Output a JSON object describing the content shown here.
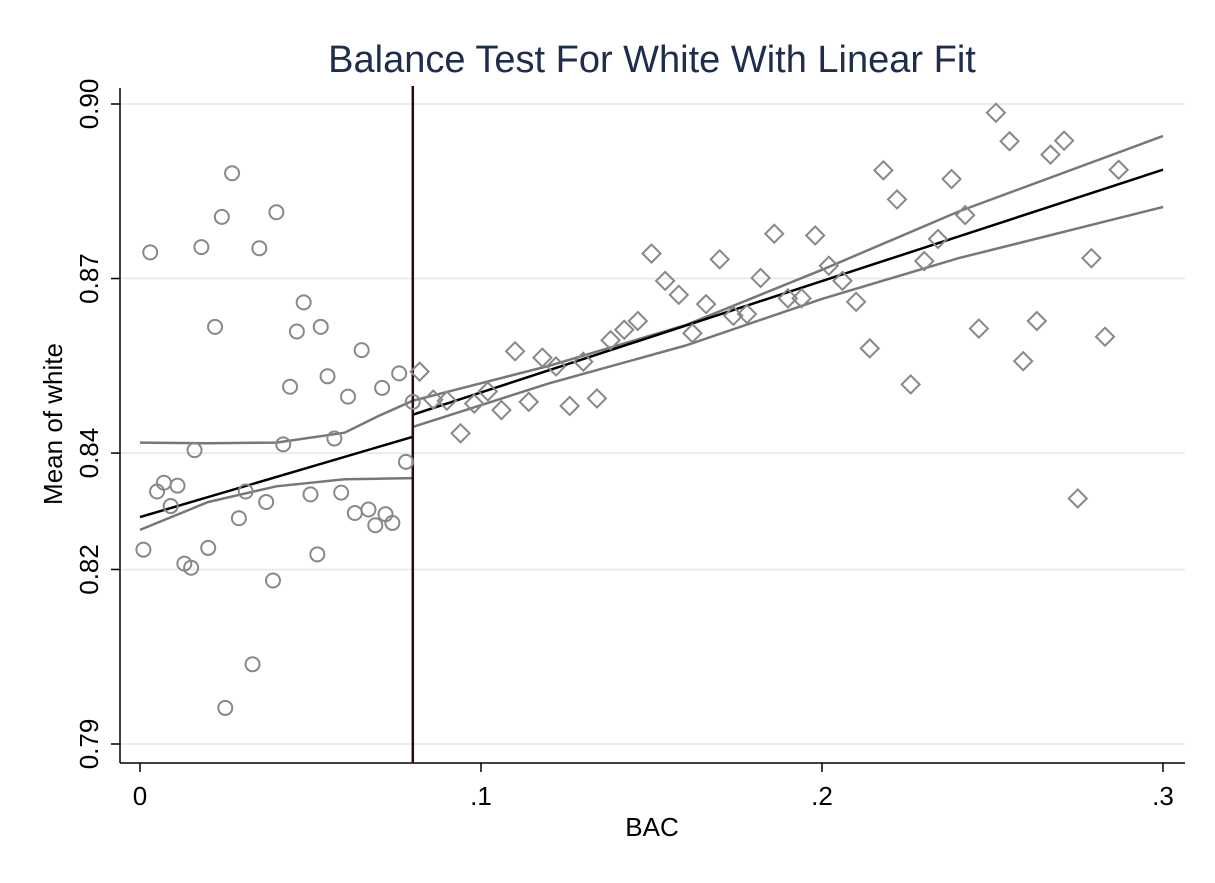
{
  "chart_data": {
    "type": "scatter",
    "title": "Balance Test For White With Linear Fit",
    "xlabel": "BAC",
    "ylabel": "Mean of white",
    "xlim": [
      0,
      0.3
    ],
    "ylim": [
      0.79,
      0.9
    ],
    "x_ticks": [
      {
        "value": 0,
        "label": "0"
      },
      {
        "value": 0.1,
        "label": ".1"
      },
      {
        "value": 0.2,
        "label": ".2"
      },
      {
        "value": 0.3,
        "label": ".3"
      }
    ],
    "y_ticks": [
      {
        "value": 0.79,
        "label": "0.79"
      },
      {
        "value": 0.82,
        "label": "0.82"
      },
      {
        "value": 0.84,
        "label": "0.84"
      },
      {
        "value": 0.87,
        "label": "0.87"
      },
      {
        "value": 0.9,
        "label": "0.90"
      }
    ],
    "grid": true,
    "cutoff": 0.08,
    "series": [
      {
        "marker": "circle",
        "color": "#888888",
        "points": [
          [
            0.001,
            0.8234
          ],
          [
            0.003,
            0.8745
          ],
          [
            0.005,
            0.8334
          ],
          [
            0.007,
            0.8349
          ],
          [
            0.009,
            0.8309
          ],
          [
            0.011,
            0.8344
          ],
          [
            0.013,
            0.821
          ],
          [
            0.015,
            0.8203
          ],
          [
            0.016,
            0.8405
          ],
          [
            0.018,
            0.8754
          ],
          [
            0.02,
            0.8237
          ],
          [
            0.022,
            0.8617
          ],
          [
            0.024,
            0.8806
          ],
          [
            0.025,
            0.7962
          ],
          [
            0.027,
            0.8881
          ],
          [
            0.029,
            0.8288
          ],
          [
            0.031,
            0.8334
          ],
          [
            0.033,
            0.8037
          ],
          [
            0.035,
            0.8752
          ],
          [
            0.037,
            0.8316
          ],
          [
            0.039,
            0.8181
          ],
          [
            0.04,
            0.8814
          ],
          [
            0.042,
            0.8415
          ],
          [
            0.044,
            0.8514
          ],
          [
            0.046,
            0.8609
          ],
          [
            0.048,
            0.8659
          ],
          [
            0.05,
            0.8329
          ],
          [
            0.052,
            0.8226
          ],
          [
            0.053,
            0.8617
          ],
          [
            0.055,
            0.8532
          ],
          [
            0.057,
            0.8425
          ],
          [
            0.059,
            0.8332
          ],
          [
            0.061,
            0.8497
          ],
          [
            0.063,
            0.8297
          ],
          [
            0.065,
            0.8577
          ],
          [
            0.067,
            0.8303
          ],
          [
            0.069,
            0.8276
          ],
          [
            0.071,
            0.8512
          ],
          [
            0.072,
            0.8295
          ],
          [
            0.074,
            0.828
          ],
          [
            0.076,
            0.8537
          ],
          [
            0.078,
            0.8385
          ],
          [
            0.08,
            0.8488
          ]
        ]
      },
      {
        "marker": "diamond",
        "color": "#888888",
        "points": [
          [
            0.082,
            0.854
          ],
          [
            0.086,
            0.8492
          ],
          [
            0.09,
            0.849
          ],
          [
            0.094,
            0.8434
          ],
          [
            0.098,
            0.8485
          ],
          [
            0.102,
            0.8506
          ],
          [
            0.106,
            0.8474
          ],
          [
            0.11,
            0.8575
          ],
          [
            0.114,
            0.8488
          ],
          [
            0.118,
            0.8564
          ],
          [
            0.122,
            0.8549
          ],
          [
            0.126,
            0.8481
          ],
          [
            0.13,
            0.8557
          ],
          [
            0.134,
            0.8494
          ],
          [
            0.138,
            0.8594
          ],
          [
            0.142,
            0.8612
          ],
          [
            0.146,
            0.8627
          ],
          [
            0.15,
            0.8743
          ],
          [
            0.154,
            0.8696
          ],
          [
            0.158,
            0.8672
          ],
          [
            0.162,
            0.8606
          ],
          [
            0.166,
            0.8656
          ],
          [
            0.17,
            0.8733
          ],
          [
            0.174,
            0.8636
          ],
          [
            0.178,
            0.8639
          ],
          [
            0.182,
            0.8701
          ],
          [
            0.186,
            0.8777
          ],
          [
            0.19,
            0.8666
          ],
          [
            0.194,
            0.8666
          ],
          [
            0.198,
            0.8774
          ],
          [
            0.202,
            0.8722
          ],
          [
            0.206,
            0.8696
          ],
          [
            0.21,
            0.866
          ],
          [
            0.214,
            0.858
          ],
          [
            0.218,
            0.8886
          ],
          [
            0.222,
            0.8836
          ],
          [
            0.226,
            0.8518
          ],
          [
            0.23,
            0.873
          ],
          [
            0.234,
            0.8768
          ],
          [
            0.238,
            0.8871
          ],
          [
            0.242,
            0.8809
          ],
          [
            0.246,
            0.8614
          ],
          [
            0.251,
            0.8985
          ],
          [
            0.255,
            0.8936
          ],
          [
            0.259,
            0.8558
          ],
          [
            0.263,
            0.8627
          ],
          [
            0.267,
            0.8913
          ],
          [
            0.271,
            0.8937
          ],
          [
            0.275,
            0.8322
          ],
          [
            0.279,
            0.8735
          ],
          [
            0.283,
            0.86
          ],
          [
            0.287,
            0.8887
          ]
        ]
      }
    ],
    "fits": [
      {
        "color": "#000000",
        "points": [
          [
            0.0,
            0.829
          ],
          [
            0.08,
            0.8428
          ]
        ]
      },
      {
        "color": "#000000",
        "points": [
          [
            0.08,
            0.8466
          ],
          [
            0.3,
            0.8887
          ]
        ]
      }
    ],
    "ci_bands": [
      {
        "color": "#777777",
        "upper": [
          [
            0.0,
            0.8418
          ],
          [
            0.02,
            0.8417
          ],
          [
            0.04,
            0.8418
          ],
          [
            0.06,
            0.8435
          ],
          [
            0.07,
            0.8464
          ],
          [
            0.08,
            0.849
          ]
        ],
        "lower": [
          [
            0.0,
            0.8268
          ],
          [
            0.02,
            0.8316
          ],
          [
            0.04,
            0.8343
          ],
          [
            0.06,
            0.8355
          ],
          [
            0.07,
            0.8356
          ],
          [
            0.08,
            0.8357
          ]
        ]
      },
      {
        "color": "#777777",
        "upper": [
          [
            0.08,
            0.849
          ],
          [
            0.12,
            0.855
          ],
          [
            0.16,
            0.862
          ],
          [
            0.2,
            0.8715
          ],
          [
            0.24,
            0.8815
          ],
          [
            0.3,
            0.8945
          ]
        ],
        "lower": [
          [
            0.08,
            0.8445
          ],
          [
            0.12,
            0.852
          ],
          [
            0.16,
            0.8585
          ],
          [
            0.2,
            0.8665
          ],
          [
            0.24,
            0.8735
          ],
          [
            0.3,
            0.8823
          ]
        ]
      }
    ]
  }
}
